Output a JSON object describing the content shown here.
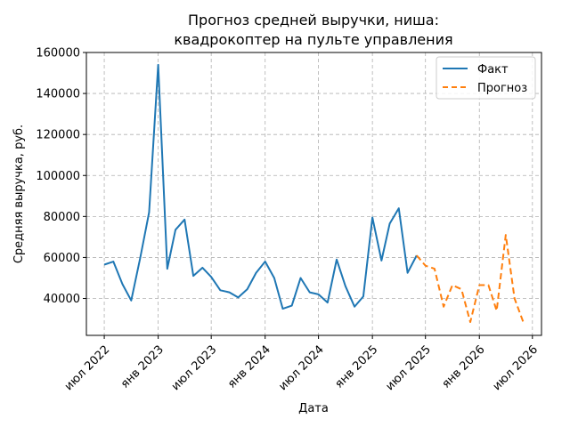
{
  "chart_data": {
    "type": "line",
    "title_lines": [
      "Прогноз средней выручки, ниша:",
      "квадрокоптер на пульте управления"
    ],
    "xlabel": "Дата",
    "ylabel": "Средняя выручка, руб.",
    "x_axis": "date",
    "xlim": [
      "2022-05-01",
      "2026-08-01"
    ],
    "ylim": [
      22000,
      160000
    ],
    "x_ticks": [
      {
        "date": "2022-07-01",
        "label": "июл 2022"
      },
      {
        "date": "2023-01-01",
        "label": "янв 2023"
      },
      {
        "date": "2023-07-01",
        "label": "июл 2023"
      },
      {
        "date": "2024-01-01",
        "label": "янв 2024"
      },
      {
        "date": "2024-07-01",
        "label": "июл 2024"
      },
      {
        "date": "2025-01-01",
        "label": "янв 2025"
      },
      {
        "date": "2025-07-01",
        "label": "июл 2025"
      },
      {
        "date": "2026-01-01",
        "label": "янв 2026"
      },
      {
        "date": "2026-07-01",
        "label": "июл 2026"
      }
    ],
    "y_ticks": [
      40000,
      60000,
      80000,
      100000,
      120000,
      140000,
      160000
    ],
    "y_tick_labels": [
      "40000",
      "60000",
      "80000",
      "100000",
      "120000",
      "140000",
      "160000"
    ],
    "grid": true,
    "legend": {
      "position": "top-right"
    },
    "series": [
      {
        "name": "Факт",
        "color": "#1f77b4",
        "style": "solid",
        "points": [
          {
            "x": "2022-07-01",
            "y": 56500
          },
          {
            "x": "2022-08-01",
            "y": 58000
          },
          {
            "x": "2022-09-01",
            "y": 47000
          },
          {
            "x": "2022-10-01",
            "y": 39000
          },
          {
            "x": "2022-11-01",
            "y": 60000
          },
          {
            "x": "2022-12-01",
            "y": 82000
          },
          {
            "x": "2023-01-01",
            "y": 154000
          },
          {
            "x": "2023-02-01",
            "y": 54500
          },
          {
            "x": "2023-03-01",
            "y": 73500
          },
          {
            "x": "2023-04-01",
            "y": 78500
          },
          {
            "x": "2023-05-01",
            "y": 51000
          },
          {
            "x": "2023-06-01",
            "y": 55000
          },
          {
            "x": "2023-07-01",
            "y": 50500
          },
          {
            "x": "2023-08-01",
            "y": 44000
          },
          {
            "x": "2023-09-01",
            "y": 43000
          },
          {
            "x": "2023-10-01",
            "y": 40500
          },
          {
            "x": "2023-11-01",
            "y": 44500
          },
          {
            "x": "2023-12-01",
            "y": 52500
          },
          {
            "x": "2024-01-01",
            "y": 58000
          },
          {
            "x": "2024-02-01",
            "y": 50000
          },
          {
            "x": "2024-03-01",
            "y": 35000
          },
          {
            "x": "2024-04-01",
            "y": 36500
          },
          {
            "x": "2024-05-01",
            "y": 50000
          },
          {
            "x": "2024-06-01",
            "y": 43000
          },
          {
            "x": "2024-07-01",
            "y": 42000
          },
          {
            "x": "2024-08-01",
            "y": 38000
          },
          {
            "x": "2024-09-01",
            "y": 59000
          },
          {
            "x": "2024-10-01",
            "y": 46000
          },
          {
            "x": "2024-11-01",
            "y": 36000
          },
          {
            "x": "2024-12-01",
            "y": 41000
          },
          {
            "x": "2025-01-01",
            "y": 79500
          },
          {
            "x": "2025-02-01",
            "y": 58500
          },
          {
            "x": "2025-03-01",
            "y": 76500
          },
          {
            "x": "2025-04-01",
            "y": 84000
          },
          {
            "x": "2025-05-01",
            "y": 52500
          },
          {
            "x": "2025-06-01",
            "y": 61000
          }
        ]
      },
      {
        "name": "Прогноз",
        "color": "#ff7f0e",
        "style": "dashed",
        "points": [
          {
            "x": "2025-06-01",
            "y": 61000
          },
          {
            "x": "2025-07-01",
            "y": 56000
          },
          {
            "x": "2025-08-01",
            "y": 54500
          },
          {
            "x": "2025-09-01",
            "y": 36000
          },
          {
            "x": "2025-10-01",
            "y": 46500
          },
          {
            "x": "2025-11-01",
            "y": 44500
          },
          {
            "x": "2025-12-01",
            "y": 28500
          },
          {
            "x": "2026-01-01",
            "y": 46500
          },
          {
            "x": "2026-02-01",
            "y": 46500
          },
          {
            "x": "2026-03-01",
            "y": 34000
          },
          {
            "x": "2026-04-01",
            "y": 71000
          },
          {
            "x": "2026-05-01",
            "y": 40000
          },
          {
            "x": "2026-06-01",
            "y": 28000
          }
        ]
      }
    ]
  }
}
